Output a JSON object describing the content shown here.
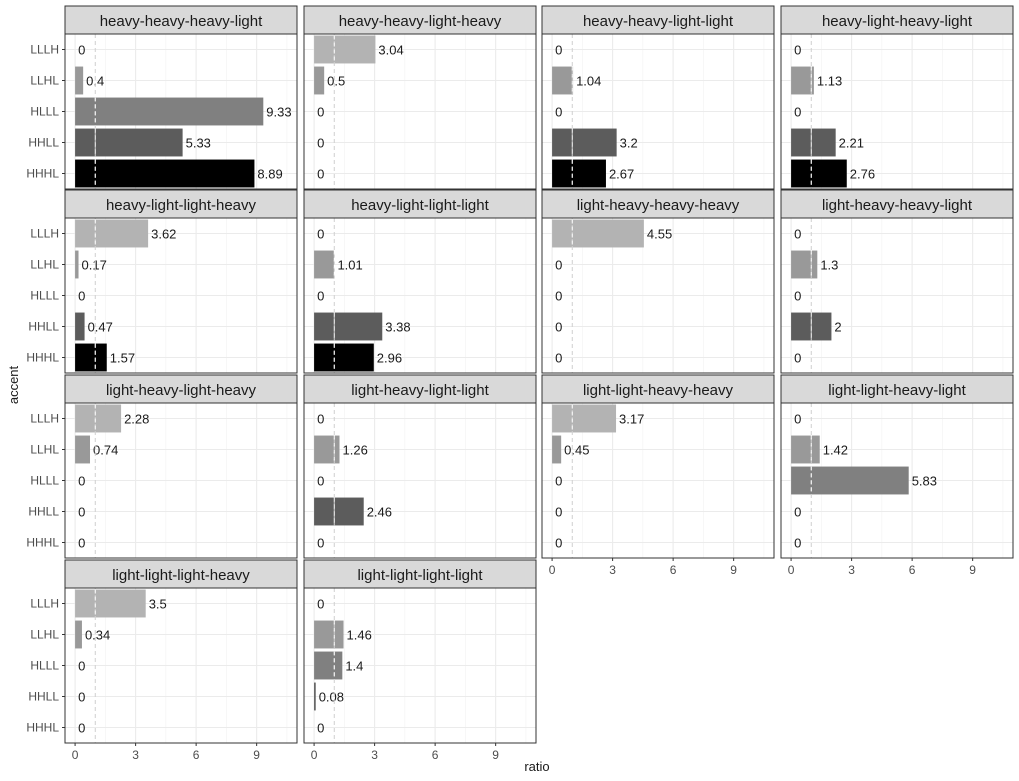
{
  "chart_data": {
    "type": "bar",
    "orientation": "horizontal",
    "xlabel": "ratio",
    "ylabel": "accent",
    "categories": [
      "LLLH",
      "LLHL",
      "HLLL",
      "HHLL",
      "HHHL"
    ],
    "xlim": [
      -0.5,
      11.0
    ],
    "xticks": [
      0,
      3,
      6,
      9
    ],
    "reference_line_x": 1,
    "category_colors": {
      "LLLH": "#b3b3b3",
      "LLHL": "#999999",
      "HLLL": "#808080",
      "HHLL": "#5c5c5c",
      "HHHL": "#000000"
    },
    "facets": [
      {
        "name": "heavy-heavy-heavy-light",
        "values": [
          0,
          0.4,
          9.33,
          5.33,
          8.89
        ],
        "labels": [
          "0",
          "0.4",
          "9.33",
          "5.33",
          "8.89"
        ]
      },
      {
        "name": "heavy-heavy-light-heavy",
        "values": [
          3.04,
          0.5,
          0,
          0,
          0
        ],
        "labels": [
          "3.04",
          "0.5",
          "0",
          "0",
          "0"
        ]
      },
      {
        "name": "heavy-heavy-light-light",
        "values": [
          0,
          1.04,
          0,
          3.2,
          2.67
        ],
        "labels": [
          "0",
          "1.04",
          "0",
          "3.2",
          "2.67"
        ]
      },
      {
        "name": "heavy-light-heavy-light",
        "values": [
          0,
          1.13,
          0,
          2.21,
          2.76
        ],
        "labels": [
          "0",
          "1.13",
          "0",
          "2.21",
          "2.76"
        ]
      },
      {
        "name": "heavy-light-light-heavy",
        "values": [
          3.62,
          0.17,
          0,
          0.47,
          1.57
        ],
        "labels": [
          "3.62",
          "0.17",
          "0",
          "0.47",
          "1.57"
        ]
      },
      {
        "name": "heavy-light-light-light",
        "values": [
          0,
          1.01,
          0,
          3.38,
          2.96
        ],
        "labels": [
          "0",
          "1.01",
          "0",
          "3.38",
          "2.96"
        ]
      },
      {
        "name": "light-heavy-heavy-heavy",
        "values": [
          4.55,
          0,
          0,
          0,
          0
        ],
        "labels": [
          "4.55",
          "0",
          "0",
          "0",
          "0"
        ]
      },
      {
        "name": "light-heavy-heavy-light",
        "values": [
          0,
          1.3,
          0,
          2,
          0
        ],
        "labels": [
          "0",
          "1.3",
          "0",
          "2",
          "0"
        ]
      },
      {
        "name": "light-heavy-light-heavy",
        "values": [
          2.28,
          0.74,
          0,
          0,
          0
        ],
        "labels": [
          "2.28",
          "0.74",
          "0",
          "0",
          "0"
        ]
      },
      {
        "name": "light-heavy-light-light",
        "values": [
          0,
          1.26,
          0,
          2.46,
          0
        ],
        "labels": [
          "0",
          "1.26",
          "0",
          "2.46",
          "0"
        ]
      },
      {
        "name": "light-light-heavy-heavy",
        "values": [
          3.17,
          0.45,
          0,
          0,
          0
        ],
        "labels": [
          "3.17",
          "0.45",
          "0",
          "0",
          "0"
        ]
      },
      {
        "name": "light-light-heavy-light",
        "values": [
          0,
          1.42,
          5.83,
          0,
          0
        ],
        "labels": [
          "0",
          "1.42",
          "5.83",
          "0",
          "0"
        ]
      },
      {
        "name": "light-light-light-heavy",
        "values": [
          3.5,
          0.34,
          0,
          0,
          0
        ],
        "labels": [
          "3.5",
          "0.34",
          "0",
          "0",
          "0"
        ]
      },
      {
        "name": "light-light-light-light",
        "values": [
          0,
          1.46,
          1.4,
          0.08,
          0
        ],
        "labels": [
          "0",
          "1.46",
          "1.4",
          "0.08",
          "0"
        ]
      }
    ]
  }
}
